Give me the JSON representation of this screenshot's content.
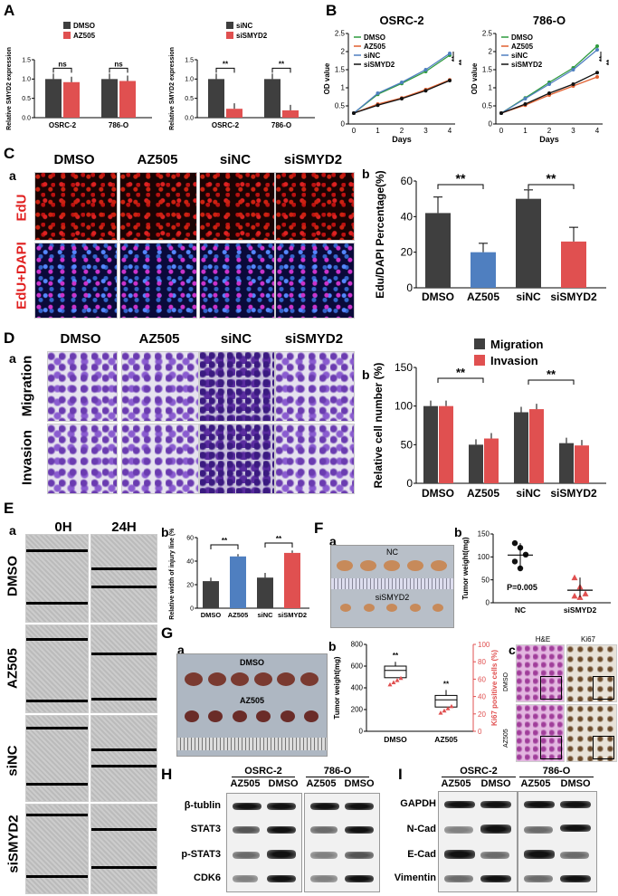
{
  "panels": {
    "A": {
      "label": "A"
    },
    "B": {
      "label": "B"
    },
    "C": {
      "label": "C",
      "a": "a",
      "b": "b"
    },
    "D": {
      "label": "D",
      "a": "a",
      "b": "b"
    },
    "E": {
      "label": "E",
      "a": "a",
      "b": "b"
    },
    "F": {
      "label": "F",
      "a": "a",
      "b": "b"
    },
    "G": {
      "label": "G",
      "a": "a",
      "b": "b",
      "c": "c"
    },
    "H": {
      "label": "H"
    },
    "I": {
      "label": "I"
    }
  },
  "colors": {
    "dark": "#3f3f3f",
    "red": "#e05050",
    "blue": "#4f7fc0",
    "green": "#2e9a3e",
    "orange": "#e06030"
  },
  "chart_data": [
    {
      "id": "A1",
      "type": "bar",
      "categories": [
        "OSRC-2",
        "786-O"
      ],
      "series": [
        {
          "name": "DMSO",
          "values": [
            1.0,
            1.0
          ]
        },
        {
          "name": "AZ505",
          "values": [
            0.92,
            0.95
          ]
        }
      ],
      "ylabel": "Relative SMYD2 expression",
      "ylim": [
        0,
        1.5
      ],
      "yticks": [
        "0.0",
        "0.5",
        "1.0",
        "1.5"
      ],
      "sig": [
        "ns",
        "ns"
      ]
    },
    {
      "id": "A2",
      "type": "bar",
      "categories": [
        "OSRC-2",
        "786-O"
      ],
      "series": [
        {
          "name": "siNC",
          "values": [
            1.0,
            1.0
          ]
        },
        {
          "name": "siSMYD2",
          "values": [
            0.23,
            0.19
          ]
        }
      ],
      "ylabel": "Relative SMYD2 expression",
      "ylim": [
        0,
        1.5
      ],
      "yticks": [
        "0.0",
        "0.5",
        "1.0",
        "1.5"
      ],
      "sig": [
        "**",
        "**"
      ]
    },
    {
      "id": "B1",
      "type": "line",
      "title": "OSRC-2",
      "x": [
        0,
        1,
        2,
        3,
        4
      ],
      "xlabel": "Days",
      "ylabel": "OD value",
      "ylim": [
        0,
        2.5
      ],
      "yticks": [
        "0",
        "0.5",
        "1",
        "1.5",
        "2",
        "2.5"
      ],
      "series": [
        {
          "name": "DMSO",
          "values": [
            0.3,
            0.82,
            1.12,
            1.45,
            1.9
          ]
        },
        {
          "name": "AZ505",
          "values": [
            0.3,
            0.55,
            0.72,
            0.95,
            1.22
          ]
        },
        {
          "name": "siNC",
          "values": [
            0.3,
            0.85,
            1.15,
            1.5,
            1.95
          ]
        },
        {
          "name": "siSMYD2",
          "values": [
            0.3,
            0.52,
            0.7,
            0.92,
            1.2
          ]
        }
      ],
      "sig": [
        "**",
        "**"
      ]
    },
    {
      "id": "B2",
      "type": "line",
      "title": "786-O",
      "x": [
        0,
        1,
        2,
        3,
        4
      ],
      "xlabel": "Days",
      "ylabel": "OD value",
      "ylim": [
        0,
        2.5
      ],
      "yticks": [
        "0",
        "0.5",
        "1",
        "1.5",
        "2",
        "2.5"
      ],
      "series": [
        {
          "name": "DMSO",
          "values": [
            0.3,
            0.72,
            1.15,
            1.55,
            2.15
          ]
        },
        {
          "name": "AZ505",
          "values": [
            0.3,
            0.52,
            0.8,
            1.05,
            1.3
          ]
        },
        {
          "name": "siNC",
          "values": [
            0.3,
            0.7,
            1.1,
            1.5,
            2.05
          ]
        },
        {
          "name": "siSMYD2",
          "values": [
            0.3,
            0.55,
            0.85,
            1.1,
            1.42
          ]
        }
      ],
      "sig": [
        "**",
        "**"
      ]
    },
    {
      "id": "Cb",
      "type": "bar",
      "categories": [
        "DMSO",
        "AZ505",
        "siNC",
        "siSMYD2"
      ],
      "values": [
        42,
        20,
        50,
        26
      ],
      "errors": [
        9,
        5,
        5,
        8
      ],
      "ylabel": "Edu/DAPI Percentage(%)",
      "ylim": [
        0,
        60
      ],
      "yticks": [
        "0",
        "20",
        "40",
        "60"
      ],
      "sig": [
        "**",
        "**"
      ]
    },
    {
      "id": "Db",
      "type": "bar",
      "categories": [
        "DMSO",
        "AZ505",
        "siNC",
        "siSMYD2"
      ],
      "series": [
        {
          "name": "Migration",
          "values": [
            100,
            50,
            92,
            52
          ]
        },
        {
          "name": "Invasion",
          "values": [
            100,
            58,
            96,
            49
          ]
        }
      ],
      "ylabel": "Relative cell number (%)",
      "ylim": [
        0,
        150
      ],
      "yticks": [
        "0",
        "50",
        "100",
        "150"
      ],
      "sig": [
        "**",
        "**"
      ]
    },
    {
      "id": "Eb",
      "type": "bar",
      "categories": [
        "DMSO",
        "AZ505",
        "siNC",
        "siSMYD2"
      ],
      "values": [
        23,
        44,
        26,
        47
      ],
      "errors": [
        3,
        2,
        4,
        2
      ],
      "ylabel": "Relative width of injury line (%)",
      "ylim": [
        0,
        60
      ],
      "yticks": [
        "0",
        "20",
        "40",
        "60"
      ],
      "sig": [
        "**",
        "**"
      ]
    },
    {
      "id": "Fb",
      "type": "scatter",
      "categories": [
        "NC",
        "siSMYD2"
      ],
      "series": [
        {
          "name": "NC",
          "values": [
            130,
            120,
            105,
            90,
            75
          ]
        },
        {
          "name": "siSMYD2",
          "values": [
            55,
            35,
            20,
            15,
            12
          ]
        }
      ],
      "ylabel": "Tumor weight(mg)",
      "ylim": [
        0,
        150
      ],
      "yticks": [
        "0",
        "50",
        "100",
        "150"
      ],
      "annotation": "P=0.005"
    },
    {
      "id": "Gb",
      "type": "box",
      "categories": [
        "DMSO",
        "AZ505"
      ],
      "ylabel": "Tumor weight(mg)",
      "ylim": [
        0,
        800
      ],
      "yticks": [
        "0",
        "200",
        "400",
        "600",
        "800"
      ],
      "y2label": "Ki67 positive cells (%)",
      "y2ticks": [
        "0",
        "20",
        "40",
        "60",
        "80",
        "100"
      ],
      "sig": [
        "**",
        "**"
      ]
    }
  ],
  "images": {
    "C": {
      "cols": [
        "DMSO",
        "AZ505",
        "siNC",
        "siSMYD2"
      ],
      "rows": [
        "EdU",
        "EdU+DAPI"
      ]
    },
    "D": {
      "cols": [
        "DMSO",
        "AZ505",
        "siNC",
        "siSMYD2"
      ],
      "rows": [
        "Migration",
        "Invasion"
      ]
    },
    "E": {
      "cols": [
        "0H",
        "24H"
      ],
      "rows": [
        "DMSO",
        "AZ505",
        "siNC",
        "siSMYD2"
      ]
    },
    "F": {
      "top": "NC",
      "bottom": "siSMYD2"
    },
    "G": {
      "top": "DMSO",
      "bottom": "AZ505",
      "he": "H&E",
      "ki": "Ki67",
      "row1": "DMSO",
      "row2": "AZ505"
    }
  },
  "blots": {
    "H": {
      "lines": [
        "OSRC-2",
        "786-O"
      ],
      "lanes": [
        "AZ505",
        "DMSO",
        "AZ505",
        "DMSO"
      ],
      "rows": [
        "β-tublin",
        "STAT3",
        "p-STAT3",
        "CDK6"
      ]
    },
    "I": {
      "lines": [
        "OSRC-2",
        "786-O"
      ],
      "lanes": [
        "AZ505",
        "DMSO",
        "AZ505",
        "DMSO"
      ],
      "rows": [
        "GAPDH",
        "N-Cad",
        "E-Cad",
        "Vimentin"
      ]
    }
  }
}
